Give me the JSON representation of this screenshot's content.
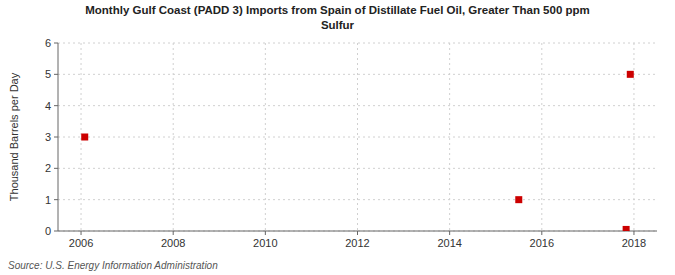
{
  "chart_data": {
    "type": "scatter",
    "title": "Monthly Gulf Coast (PADD 3) Imports from Spain of Distillate Fuel Oil, Greater Than 500 ppm\nSulfur",
    "y_label": "Thousand Barrels per Day",
    "source": "Source: U.S. Energy Information Administration",
    "x": [
      2006.08,
      2015.5,
      2017.83,
      2017.92
    ],
    "values": [
      3.0,
      1.0,
      0.05,
      5.0
    ],
    "color": "#cc0000",
    "marker": "square",
    "xlim": [
      2005.5,
      2018.5
    ],
    "ylim": [
      0,
      6
    ],
    "xticks": [
      2006,
      2008,
      2010,
      2012,
      2014,
      2016,
      2018
    ],
    "yticks": [
      0,
      1,
      2,
      3,
      4,
      5,
      6
    ],
    "grid": true
  }
}
